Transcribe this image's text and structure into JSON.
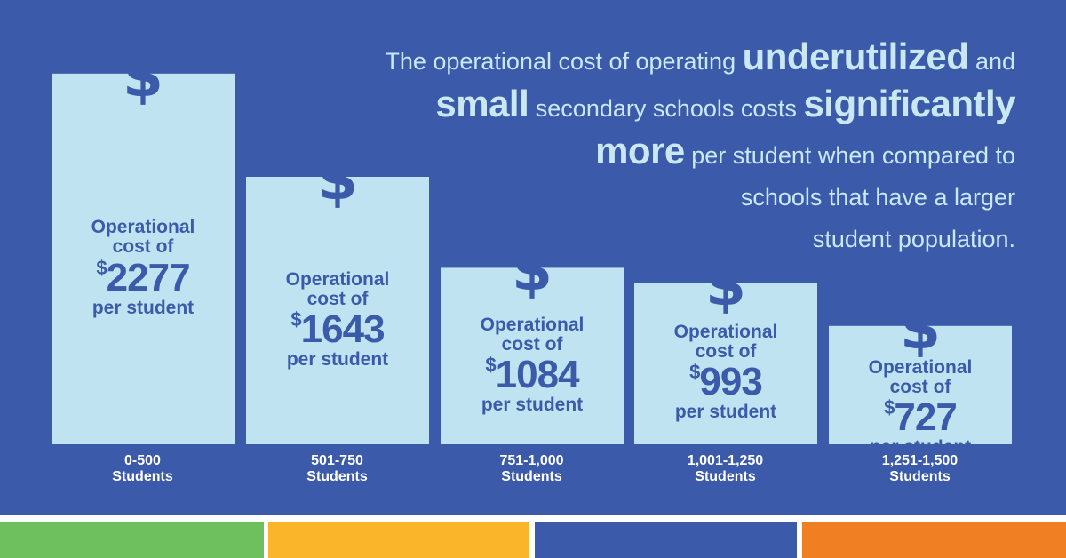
{
  "chart_data": {
    "type": "bar",
    "categories": [
      "0-500\nStudents",
      "501-750\nStudents",
      "751-1,000\nStudents",
      "1,001-1,250\nStudents",
      "1,251-1,500\nStudents"
    ],
    "category_lines": [
      [
        "0-500",
        "Students"
      ],
      [
        "501-750",
        "Students"
      ],
      [
        "751-1,000",
        "Students"
      ],
      [
        "1,001-1,250",
        "Students"
      ],
      [
        "1,251-1,500",
        "Students"
      ]
    ],
    "values": [
      2277,
      1643,
      1084,
      993,
      727
    ],
    "value_prefix": "$",
    "bar_label_top": [
      "Operational",
      "cost of"
    ],
    "bar_label_bottom": "per student",
    "bar_color": "#bfe3f1",
    "icon": "dollar-sign-icon",
    "icon_glyph": "$",
    "title_parts": [
      {
        "text": "The operational cost of operating ",
        "emphasis": false
      },
      {
        "text": "underutilized",
        "emphasis": true
      },
      {
        "text": " and ",
        "emphasis": false
      },
      {
        "text": "small",
        "emphasis": true
      },
      {
        "text": " secondary schools costs ",
        "emphasis": false
      },
      {
        "text": "significantly",
        "emphasis": true
      },
      {
        "text": "more",
        "emphasis": true
      },
      {
        "text": " per student when compared  to ",
        "emphasis": false
      },
      {
        "text": "schools that have a larger ",
        "emphasis": false
      },
      {
        "text": "student population.",
        "emphasis": false
      }
    ],
    "xlabel": "",
    "ylabel": "",
    "ylim": [
      0,
      2500
    ],
    "grid": false
  },
  "colors": {
    "background": "#3b5baa",
    "headline_text": "#c9e8f3",
    "footer_stripes": [
      "#6ebf5e",
      "#fbb52a",
      "#3b5baa",
      "#ef7f22"
    ]
  }
}
